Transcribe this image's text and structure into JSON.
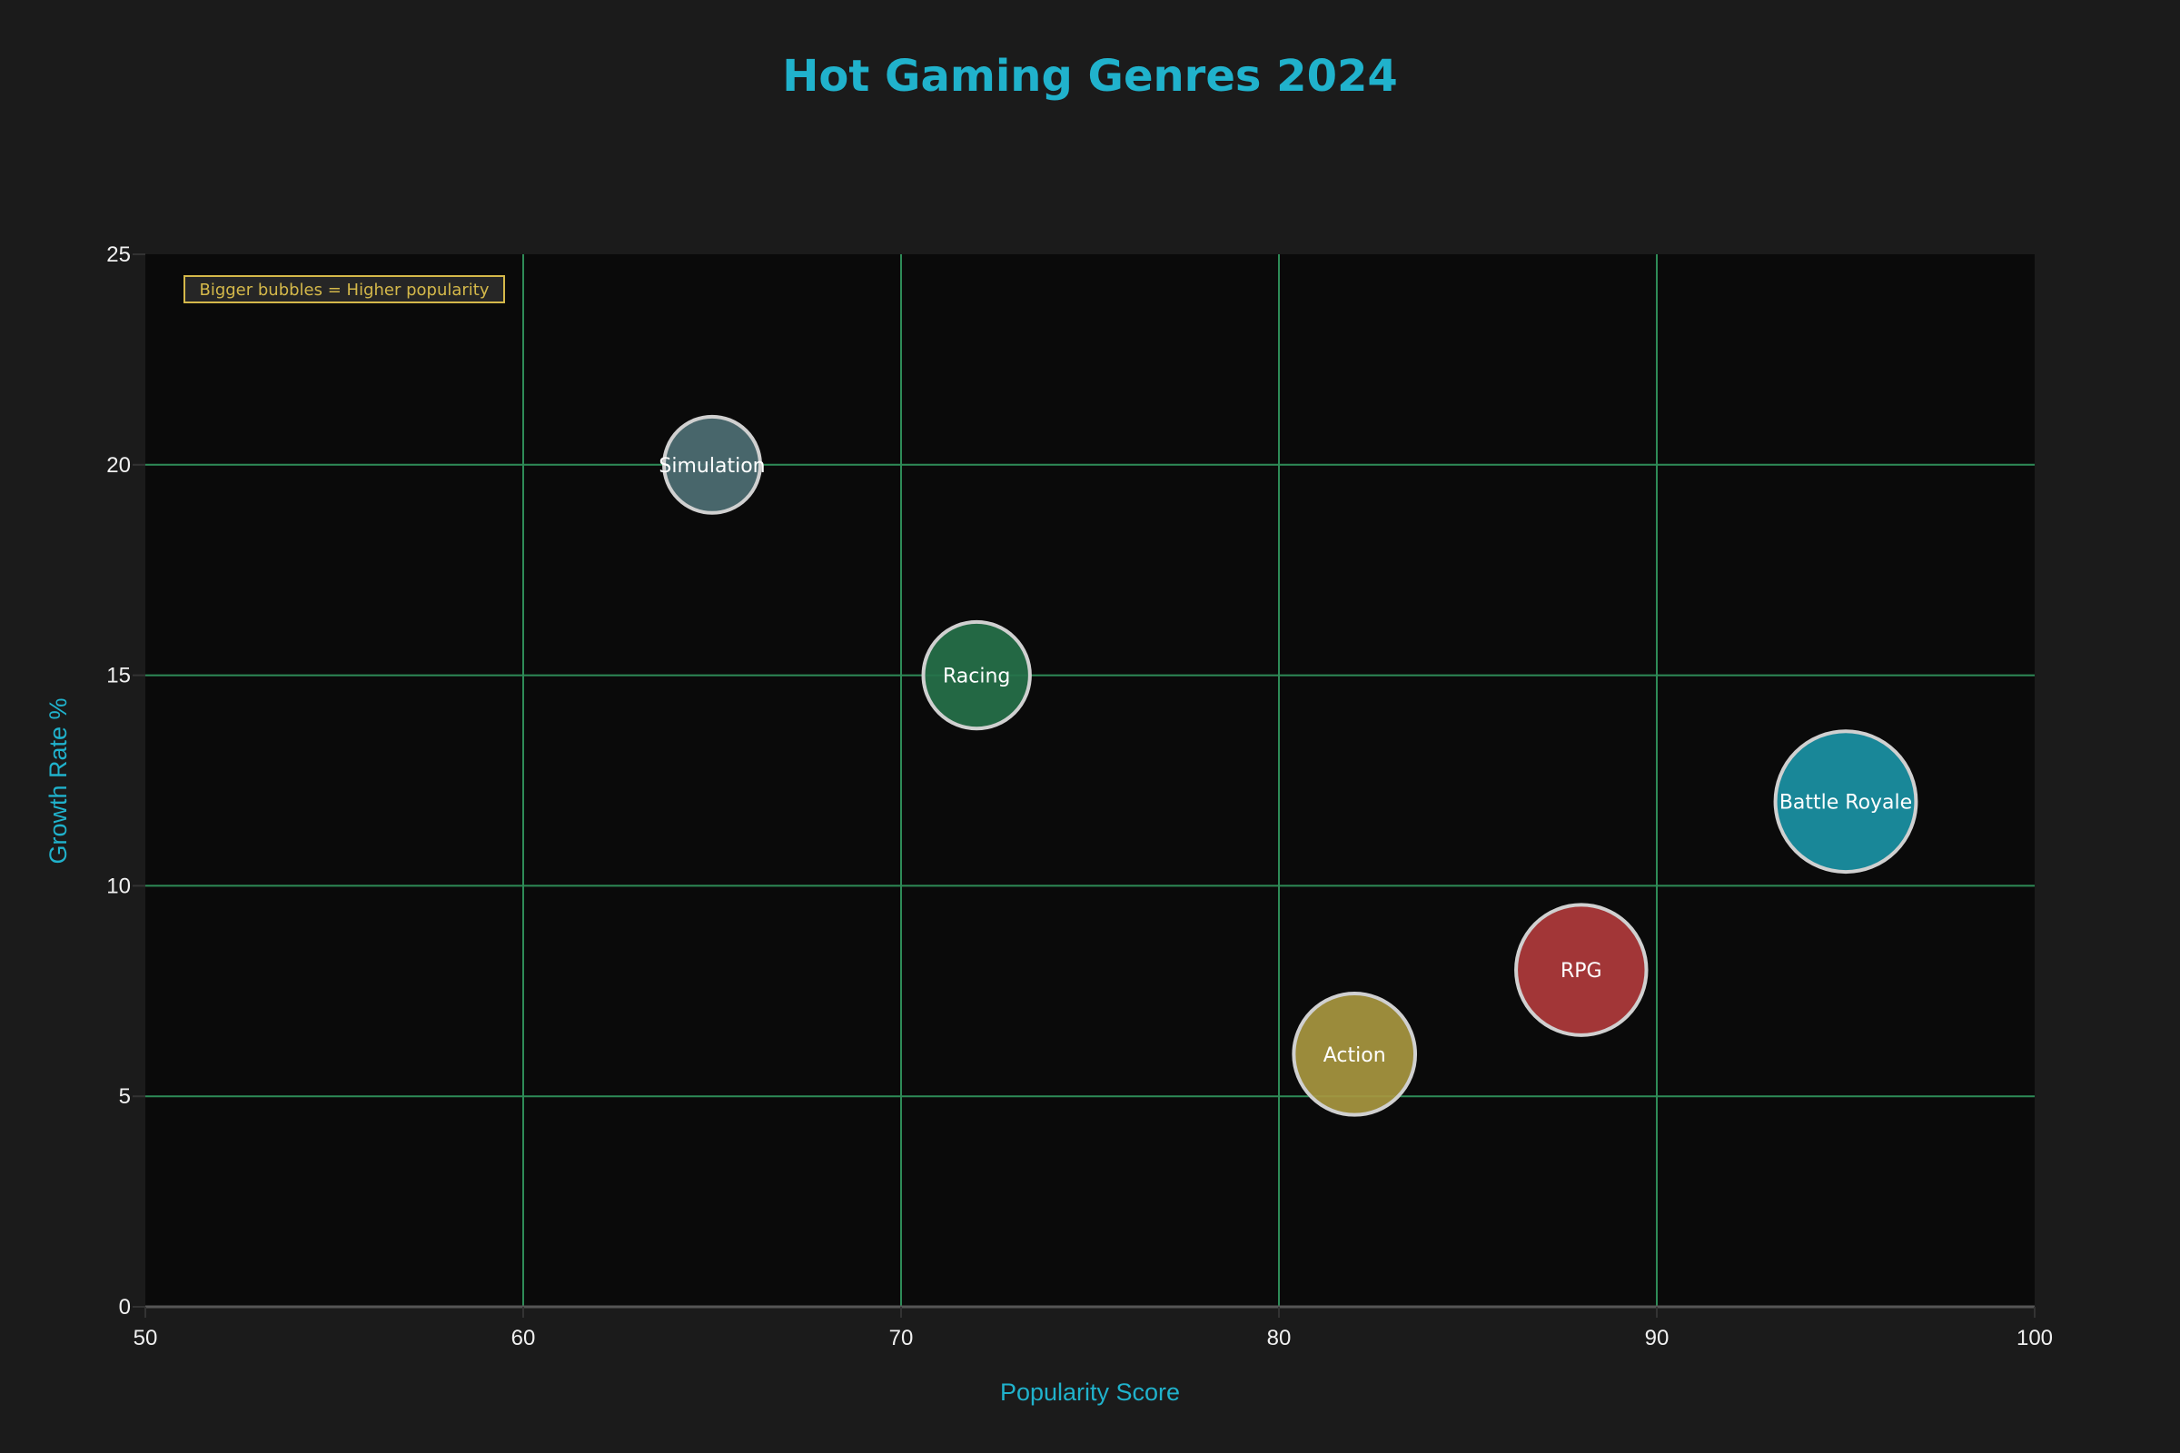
{
  "chart_data": {
    "type": "scatter",
    "subtype": "bubble",
    "title": "Hot Gaming Genres 2024",
    "xlabel": "Popularity Score",
    "ylabel": "Growth Rate %",
    "xlim": [
      50,
      100
    ],
    "ylim": [
      0,
      25
    ],
    "xticks": [
      50,
      60,
      70,
      80,
      90,
      100
    ],
    "yticks": [
      0,
      5,
      10,
      15,
      20,
      25
    ],
    "grid": true,
    "legend": null,
    "annotation": "Bigger bubbles = Higher popularity",
    "points": [
      {
        "label": "Simulation",
        "x": 65,
        "y": 20,
        "size": 65,
        "color": "#4e6f74"
      },
      {
        "label": "Racing",
        "x": 72,
        "y": 15,
        "size": 72,
        "color": "#26714a"
      },
      {
        "label": "Action",
        "x": 82,
        "y": 6,
        "size": 82,
        "color": "#a89740"
      },
      {
        "label": "RPG",
        "x": 88,
        "y": 8,
        "size": 88,
        "color": "#b03b3c"
      },
      {
        "label": "Battle Royale",
        "x": 95,
        "y": 12,
        "size": 95,
        "color": "#1b93a5"
      }
    ]
  },
  "colors": {
    "background": "#1b1b1b",
    "plot_background": "#0a0a0a",
    "grid": "#2e8b57",
    "title": "#20b2cc",
    "axis_title": "#20b2cc",
    "tick_label": "#f0f0f0",
    "bubble_edge": "#d0d0d0",
    "annotation": "#d4b84a"
  }
}
